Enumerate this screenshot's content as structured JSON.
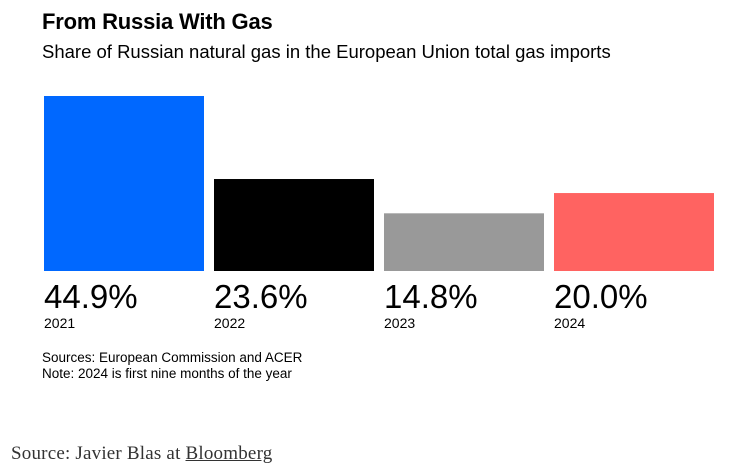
{
  "title": "From Russia With Gas",
  "subtitle": "Share of Russian natural gas in the European Union total gas imports",
  "notes": {
    "sources": "Sources: European Commission and ACER",
    "note": "Note: 2024 is first nine months of the year"
  },
  "footer": {
    "prefix": "Source: Javier Blas at",
    "link": "Bloomberg"
  },
  "chart_data": {
    "type": "bar",
    "title": "From Russia With Gas",
    "subtitle": "Share of Russian natural gas in the European Union total gas imports",
    "categories": [
      "2021",
      "2022",
      "2023",
      "2024"
    ],
    "values": [
      44.9,
      23.6,
      14.8,
      20.0
    ],
    "value_labels": [
      "44.9%",
      "23.6%",
      "14.8%",
      "20.0%"
    ],
    "bar_colors": [
      "#0068ff",
      "#000000",
      "#999999",
      "#ff6361"
    ],
    "ylim": [
      0,
      44.9
    ],
    "grid": false,
    "legend": "none"
  }
}
